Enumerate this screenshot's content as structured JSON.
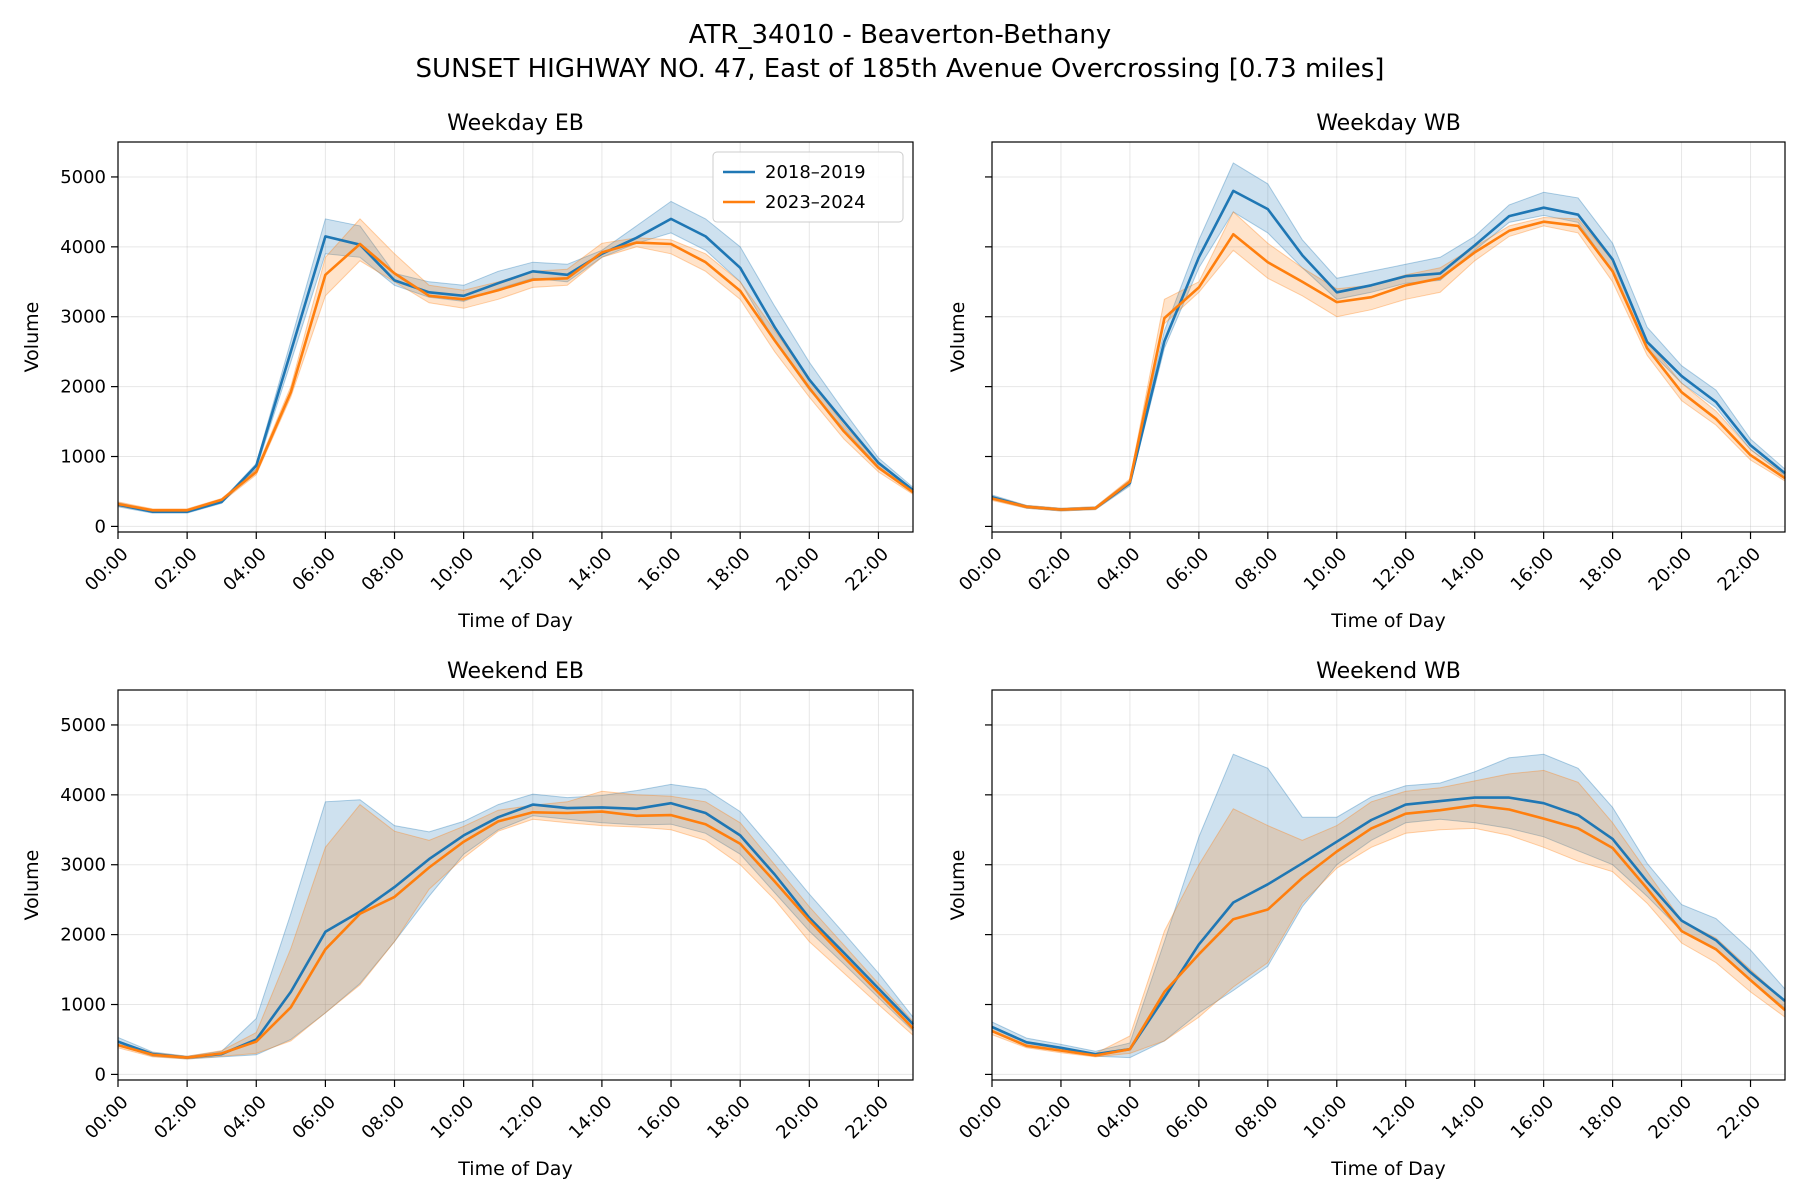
{
  "figure": {
    "title_line1": "ATR_34010 - Beaverton-Bethany",
    "title_line2": "SUNSET HIGHWAY NO. 47, East of 185th Avenue Overcrossing [0.73 miles]"
  },
  "colors": {
    "series_2018_2019": "#1f77b4",
    "series_2023_2024": "#ff7f0e"
  },
  "chart_data": [
    {
      "type": "line",
      "title": "Weekday EB",
      "xlabel": "Time of Day",
      "ylabel": "Volume",
      "x": [
        0,
        1,
        2,
        3,
        4,
        5,
        6,
        7,
        8,
        9,
        10,
        11,
        12,
        13,
        14,
        15,
        16,
        17,
        18,
        19,
        20,
        21,
        22,
        23
      ],
      "x_tick_labels": [
        "00:00",
        "02:00",
        "04:00",
        "06:00",
        "08:00",
        "10:00",
        "12:00",
        "14:00",
        "16:00",
        "18:00",
        "20:00",
        "22:00"
      ],
      "y_ticks": [
        0,
        1000,
        2000,
        3000,
        4000,
        5000
      ],
      "xlim": [
        0,
        23
      ],
      "ylim": [
        -80,
        5500
      ],
      "grid": true,
      "legend": "top-right",
      "series": [
        {
          "name": "2018–2019",
          "color": "#1f77b4",
          "values": [
            310,
            210,
            210,
            350,
            870,
            2500,
            4150,
            4030,
            3520,
            3350,
            3300,
            3480,
            3650,
            3600,
            3900,
            4130,
            4400,
            4150,
            3700,
            2850,
            2100,
            1500,
            910,
            520
          ],
          "lower": [
            280,
            190,
            190,
            330,
            820,
            2350,
            3900,
            3850,
            3450,
            3280,
            3220,
            3400,
            3550,
            3500,
            3850,
            4050,
            4200,
            3950,
            3500,
            2650,
            1950,
            1400,
            860,
            490
          ],
          "upper": [
            340,
            230,
            230,
            370,
            900,
            2650,
            4400,
            4300,
            3620,
            3500,
            3450,
            3650,
            3780,
            3750,
            3950,
            4300,
            4650,
            4400,
            4000,
            3150,
            2350,
            1650,
            980,
            560
          ]
        },
        {
          "name": "2023–2024",
          "color": "#ff7f0e",
          "values": [
            320,
            230,
            230,
            380,
            780,
            1920,
            3600,
            4040,
            3620,
            3300,
            3250,
            3380,
            3530,
            3550,
            3920,
            4060,
            4040,
            3780,
            3370,
            2660,
            1980,
            1360,
            840,
            490
          ],
          "lower": [
            290,
            210,
            210,
            350,
            740,
            1850,
            3300,
            3800,
            3500,
            3200,
            3120,
            3250,
            3420,
            3450,
            3850,
            4000,
            3900,
            3650,
            3250,
            2500,
            1850,
            1250,
            780,
            460
          ],
          "upper": [
            350,
            250,
            250,
            400,
            820,
            2000,
            3850,
            4400,
            3900,
            3450,
            3380,
            3500,
            3650,
            3680,
            4050,
            4130,
            4100,
            3900,
            3500,
            2800,
            2100,
            1450,
            900,
            520
          ]
        }
      ]
    },
    {
      "type": "line",
      "title": "Weekday WB",
      "xlabel": "Time of Day",
      "ylabel": "Volume",
      "x": [
        0,
        1,
        2,
        3,
        4,
        5,
        6,
        7,
        8,
        9,
        10,
        11,
        12,
        13,
        14,
        15,
        16,
        17,
        18,
        19,
        20,
        21,
        22,
        23
      ],
      "x_tick_labels": [
        "00:00",
        "02:00",
        "04:00",
        "06:00",
        "08:00",
        "10:00",
        "12:00",
        "14:00",
        "16:00",
        "18:00",
        "20:00",
        "22:00"
      ],
      "y_ticks": [
        0,
        1000,
        2000,
        3000,
        4000,
        5000
      ],
      "xlim": [
        0,
        23
      ],
      "ylim": [
        -80,
        5500
      ],
      "grid": true,
      "legend": "none",
      "series": [
        {
          "name": "2018–2019",
          "color": "#1f77b4",
          "values": [
            420,
            280,
            240,
            260,
            620,
            2650,
            3850,
            4800,
            4540,
            3880,
            3350,
            3450,
            3580,
            3620,
            4020,
            4440,
            4560,
            4460,
            3820,
            2640,
            2150,
            1780,
            1160,
            760
          ],
          "lower": [
            390,
            260,
            220,
            240,
            580,
            2550,
            3700,
            4500,
            4200,
            3700,
            3250,
            3350,
            3480,
            3520,
            3950,
            4350,
            4450,
            4350,
            3650,
            2550,
            2050,
            1700,
            1100,
            720
          ],
          "upper": [
            450,
            300,
            260,
            280,
            660,
            2800,
            4100,
            5200,
            4900,
            4100,
            3550,
            3650,
            3750,
            3850,
            4150,
            4600,
            4780,
            4700,
            4050,
            2850,
            2300,
            1950,
            1250,
            820
          ]
        },
        {
          "name": "2023–2024",
          "color": "#ff7f0e",
          "values": [
            400,
            280,
            240,
            260,
            640,
            2980,
            3420,
            4180,
            3780,
            3500,
            3210,
            3280,
            3450,
            3550,
            3920,
            4230,
            4360,
            4300,
            3650,
            2550,
            1920,
            1540,
            1020,
            690
          ],
          "lower": [
            370,
            260,
            220,
            240,
            600,
            2900,
            3350,
            3950,
            3550,
            3300,
            3000,
            3100,
            3250,
            3350,
            3800,
            4150,
            4300,
            4200,
            3500,
            2450,
            1800,
            1450,
            950,
            650
          ],
          "upper": [
            430,
            300,
            260,
            280,
            680,
            3250,
            3500,
            4500,
            4050,
            3700,
            3400,
            3450,
            3600,
            3700,
            4000,
            4300,
            4420,
            4400,
            3800,
            2650,
            2050,
            1650,
            1100,
            740
          ]
        }
      ]
    },
    {
      "type": "line",
      "title": "Weekend EB",
      "xlabel": "Time of Day",
      "ylabel": "Volume",
      "x": [
        0,
        1,
        2,
        3,
        4,
        5,
        6,
        7,
        8,
        9,
        10,
        11,
        12,
        13,
        14,
        15,
        16,
        17,
        18,
        19,
        20,
        21,
        22,
        23
      ],
      "x_tick_labels": [
        "00:00",
        "02:00",
        "04:00",
        "06:00",
        "08:00",
        "10:00",
        "12:00",
        "14:00",
        "16:00",
        "18:00",
        "20:00",
        "22:00"
      ],
      "y_ticks": [
        0,
        1000,
        2000,
        3000,
        4000,
        5000
      ],
      "xlim": [
        0,
        23
      ],
      "ylim": [
        -80,
        5500
      ],
      "grid": true,
      "legend": "none",
      "series": [
        {
          "name": "2018–2019",
          "color": "#1f77b4",
          "values": [
            470,
            290,
            240,
            290,
            500,
            1180,
            2040,
            2330,
            2680,
            3080,
            3420,
            3680,
            3860,
            3810,
            3820,
            3800,
            3880,
            3740,
            3420,
            2860,
            2240,
            1740,
            1230,
            720
          ],
          "lower": [
            420,
            260,
            220,
            250,
            280,
            500,
            880,
            1300,
            1900,
            2550,
            3150,
            3500,
            3700,
            3650,
            3600,
            3570,
            3580,
            3450,
            3150,
            2600,
            2050,
            1580,
            1100,
            620
          ],
          "upper": [
            530,
            320,
            260,
            330,
            800,
            2300,
            3900,
            3930,
            3560,
            3470,
            3620,
            3860,
            4010,
            3960,
            3990,
            4060,
            4150,
            4080,
            3760,
            3180,
            2580,
            2020,
            1450,
            820
          ]
        },
        {
          "name": "2023–2024",
          "color": "#ff7f0e",
          "values": [
            420,
            280,
            240,
            300,
            470,
            960,
            1790,
            2300,
            2540,
            2960,
            3330,
            3620,
            3750,
            3740,
            3760,
            3700,
            3710,
            3580,
            3300,
            2760,
            2200,
            1680,
            1170,
            660
          ],
          "lower": [
            380,
            250,
            220,
            260,
            300,
            480,
            880,
            1280,
            1900,
            2650,
            3100,
            3480,
            3650,
            3600,
            3560,
            3540,
            3500,
            3350,
            3000,
            2500,
            1900,
            1450,
            1000,
            560
          ],
          "upper": [
            470,
            310,
            260,
            340,
            600,
            1800,
            3250,
            3860,
            3480,
            3350,
            3550,
            3780,
            3850,
            3900,
            4050,
            4000,
            3980,
            3900,
            3600,
            3000,
            2400,
            1850,
            1300,
            760
          ]
        }
      ]
    },
    {
      "type": "line",
      "title": "Weekend WB",
      "xlabel": "Time of Day",
      "ylabel": "Volume",
      "x": [
        0,
        1,
        2,
        3,
        4,
        5,
        6,
        7,
        8,
        9,
        10,
        11,
        12,
        13,
        14,
        15,
        16,
        17,
        18,
        19,
        20,
        21,
        22,
        23
      ],
      "x_tick_labels": [
        "00:00",
        "02:00",
        "04:00",
        "06:00",
        "08:00",
        "10:00",
        "12:00",
        "14:00",
        "16:00",
        "18:00",
        "20:00",
        "22:00"
      ],
      "y_ticks": [
        0,
        1000,
        2000,
        3000,
        4000,
        5000
      ],
      "xlim": [
        0,
        23
      ],
      "ylim": [
        -80,
        5500
      ],
      "grid": true,
      "legend": "none",
      "series": [
        {
          "name": "2018–2019",
          "color": "#1f77b4",
          "values": [
            680,
            460,
            380,
            290,
            360,
            1100,
            1860,
            2460,
            2720,
            3020,
            3330,
            3640,
            3860,
            3910,
            3960,
            3960,
            3880,
            3710,
            3370,
            2760,
            2200,
            1920,
            1460,
            1050
          ],
          "lower": [
            620,
            420,
            340,
            260,
            240,
            480,
            880,
            1200,
            1550,
            2400,
            3000,
            3350,
            3600,
            3650,
            3600,
            3520,
            3400,
            3200,
            3000,
            2550,
            2050,
            1800,
            1350,
            950
          ],
          "upper": [
            750,
            520,
            430,
            330,
            450,
            1900,
            3400,
            4580,
            4380,
            3680,
            3680,
            3970,
            4130,
            4170,
            4330,
            4530,
            4580,
            4380,
            3820,
            3020,
            2430,
            2230,
            1780,
            1220
          ]
        },
        {
          "name": "2023–2024",
          "color": "#ff7f0e",
          "values": [
            620,
            410,
            340,
            270,
            360,
            1180,
            1720,
            2220,
            2360,
            2810,
            3190,
            3520,
            3730,
            3780,
            3850,
            3790,
            3660,
            3520,
            3240,
            2660,
            2050,
            1790,
            1350,
            920
          ],
          "lower": [
            570,
            380,
            310,
            250,
            300,
            480,
            820,
            1250,
            1600,
            2450,
            2950,
            3250,
            3450,
            3500,
            3520,
            3420,
            3250,
            3050,
            2900,
            2450,
            1880,
            1600,
            1180,
            820
          ],
          "upper": [
            680,
            450,
            380,
            300,
            550,
            2050,
            3000,
            3800,
            3560,
            3350,
            3560,
            3900,
            4050,
            4100,
            4200,
            4300,
            4350,
            4180,
            3600,
            2900,
            2200,
            1950,
            1500,
            1050
          ]
        }
      ]
    }
  ]
}
